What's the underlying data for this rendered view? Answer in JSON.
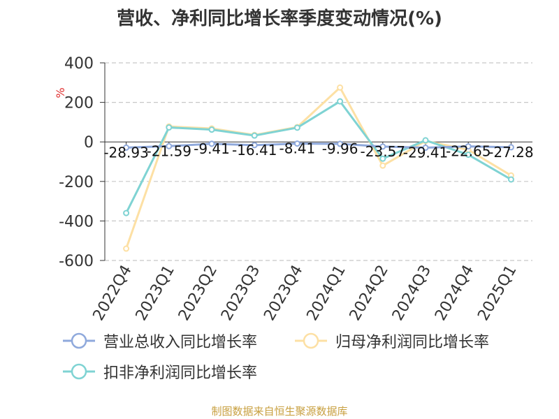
{
  "chart_data": {
    "type": "line",
    "title": "营收、净利同比增长率季度变动情况(%)",
    "ylabel": "%",
    "categories": [
      "2022Q4",
      "2023Q1",
      "2023Q2",
      "2023Q3",
      "2023Q4",
      "2024Q1",
      "2024Q2",
      "2024Q3",
      "2024Q4",
      "2025Q1"
    ],
    "ylim": [
      -600,
      400
    ],
    "yticks": [
      400,
      200,
      0,
      -200,
      -400,
      -600
    ],
    "grid": true,
    "legend_position": "bottom",
    "series": [
      {
        "name": "营业总收入同比增长率",
        "color": "#8fa9dc",
        "values": [
          -28.93,
          -21.59,
          -9.41,
          -16.41,
          -8.41,
          -9.96,
          -23.57,
          -29.41,
          -22.65,
          -27.28
        ],
        "labels": [
          "-28.93",
          "-21.59",
          "-9.41",
          "-16.41",
          "-8.41",
          "-9.96",
          "-23.57",
          "-29.41",
          "-22.65",
          "-27.28"
        ]
      },
      {
        "name": "归母净利润同比增长率",
        "color": "#fde0a4",
        "values": [
          -540,
          78,
          68,
          35,
          75,
          275,
          -120,
          5,
          -40,
          -170
        ]
      },
      {
        "name": "扣非净利润同比增长率",
        "color": "#7fd3d3",
        "values": [
          -360,
          73,
          62,
          32,
          72,
          205,
          -85,
          8,
          -65,
          -190
        ]
      }
    ]
  },
  "source": "制图数据来自恒生聚源数据库"
}
